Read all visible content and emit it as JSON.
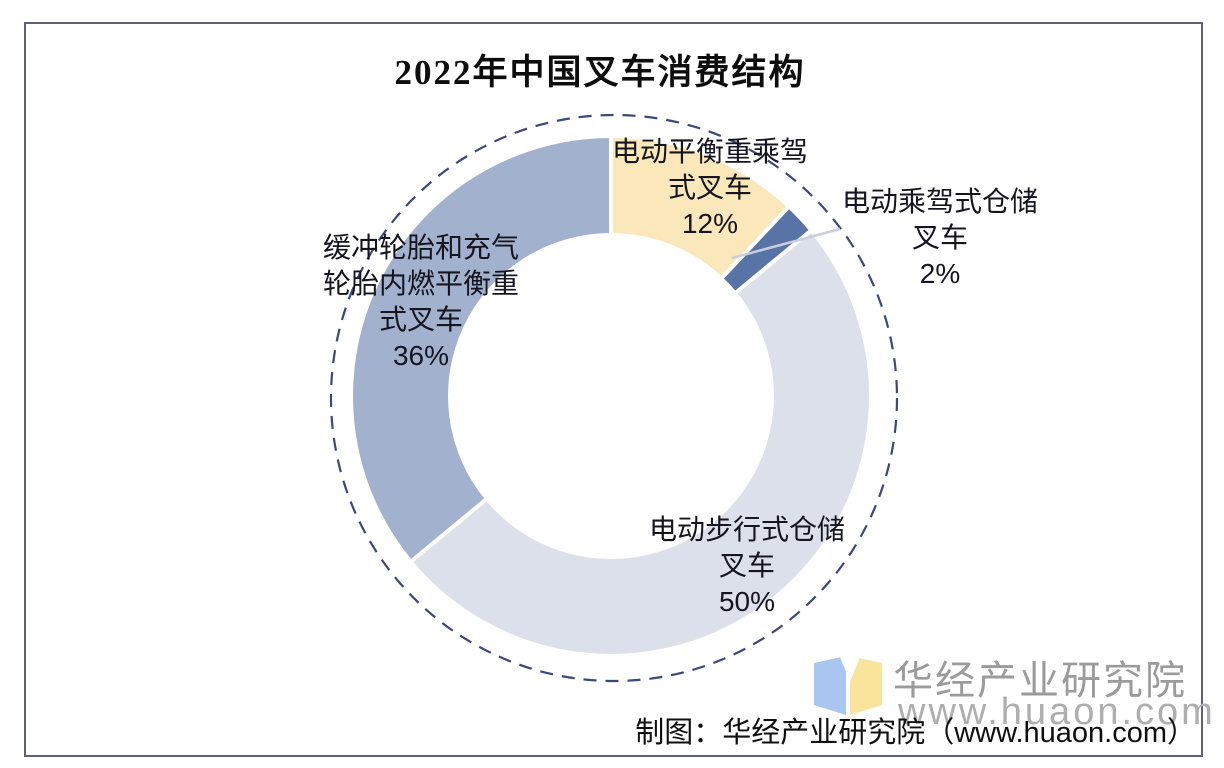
{
  "page": {
    "title": "2022年中国叉车消费结构",
    "caption": "制图：华经产业研究院（www.huaon.com）",
    "brand": {
      "name": "华经产业研究院",
      "url": "www.huaon.com"
    }
  },
  "chart_data": {
    "type": "pie",
    "donut": true,
    "title": "2022年中国叉车消费结构",
    "unit": "%",
    "start_angle_deg": 0,
    "direction": "clockwise",
    "categories": [
      "电动平衡重乘驾式叉车",
      "电动乘驾式仓储叉车",
      "电动步行式仓储叉车",
      "缓冲轮胎和充气轮胎内燃平衡重式叉车"
    ],
    "values": [
      12,
      2,
      50,
      36
    ],
    "colors": [
      "#FAE7BA",
      "#5873A5",
      "#DCE0EB",
      "#A2B1CD"
    ],
    "guide_circle_color": "#3D4779",
    "labels": [
      {
        "lines": [
          "电动平衡重乘驾",
          "式叉车"
        ],
        "value_text": "12%"
      },
      {
        "lines": [
          "电动乘驾式仓储",
          "叉车"
        ],
        "value_text": "2%"
      },
      {
        "lines": [
          "电动步行式仓储",
          "叉车"
        ],
        "value_text": "50%"
      },
      {
        "lines": [
          "缓冲轮胎和充气",
          "轮胎内燃平衡重",
          "式叉车"
        ],
        "value_text": "36%"
      }
    ]
  }
}
